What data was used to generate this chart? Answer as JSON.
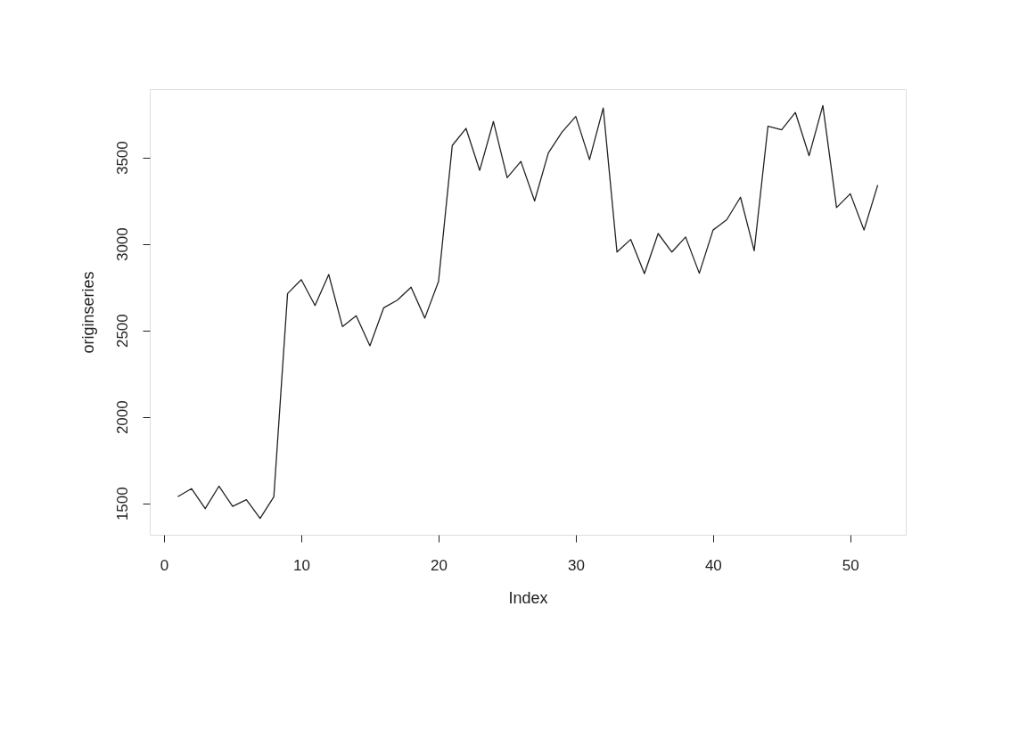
{
  "chart_data": {
    "type": "line",
    "xlabel": "Index",
    "ylabel": "originseries",
    "x": [
      1,
      2,
      3,
      4,
      5,
      6,
      7,
      8,
      9,
      10,
      11,
      12,
      13,
      14,
      15,
      16,
      17,
      18,
      19,
      20,
      21,
      22,
      23,
      24,
      25,
      26,
      27,
      28,
      29,
      30,
      31,
      32,
      33,
      34,
      35,
      36,
      37,
      38,
      39,
      40,
      41,
      42,
      43,
      44,
      45,
      46,
      47,
      48,
      49,
      50,
      51,
      52
    ],
    "series": [
      {
        "color": "#222222",
        "values": [
          1538,
          1585,
          1469,
          1599,
          1482,
          1521,
          1413,
          1538,
          2713,
          2793,
          2644,
          2823,
          2522,
          2585,
          2411,
          2630,
          2675,
          2750,
          2571,
          2783,
          3569,
          3668,
          3425,
          3708,
          3383,
          3477,
          3248,
          3526,
          3647,
          3737,
          3487,
          3786,
          2953,
          3026,
          2828,
          3060,
          2953,
          3040,
          2830,
          3080,
          3140,
          3270,
          2960,
          3680,
          3660,
          3760,
          3510,
          3800,
          3210,
          3290,
          3080,
          3340
        ]
      }
    ],
    "xlim": [
      -1.04,
      54.04
    ],
    "ylim": [
      1318,
      3895
    ],
    "xticks": [
      0,
      10,
      20,
      30,
      40,
      50
    ],
    "yticks": [
      1500,
      2000,
      2500,
      3000,
      3500
    ],
    "grid": false,
    "legend": false,
    "marker": "none",
    "line_style": "solid"
  }
}
